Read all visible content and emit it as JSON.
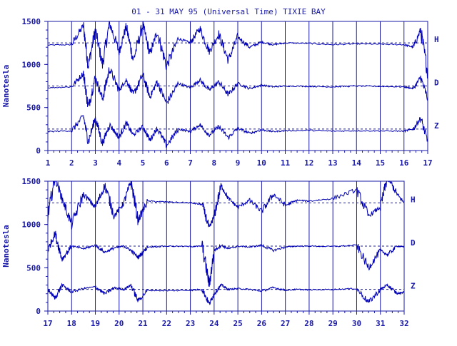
{
  "title": "01 - 31 MAY 95 (Universal Time) TIXIE BAY",
  "colors": {
    "ink": "#1a1aa6",
    "trace": "#0000b4",
    "background": "#ffffff"
  },
  "chart_data": [
    {
      "type": "line",
      "title": "01 - 31 MAY 95 (Universal Time) TIXIE BAY",
      "xlabel": "",
      "ylabel": "Nanotesla",
      "xlim": [
        1,
        17
      ],
      "ylim": [
        0,
        1500
      ],
      "x_ticks": [
        1,
        2,
        3,
        4,
        5,
        6,
        7,
        8,
        9,
        10,
        11,
        12,
        13,
        14,
        15,
        16,
        17
      ],
      "y_ticks": [
        0,
        500,
        1000,
        1500
      ],
      "grid": "vertical lines at each day",
      "baselines": [
        1250,
        750,
        250
      ],
      "series": [
        {
          "name": "H",
          "baseline": 1250,
          "x": [
            1,
            2,
            2.5,
            2.7,
            3,
            3.3,
            3.6,
            4,
            4.3,
            4.6,
            5,
            5.3,
            5.6,
            6,
            6.5,
            7,
            7.4,
            7.8,
            8.2,
            8.6,
            9,
            9.5,
            10,
            10.5,
            11,
            12,
            13,
            14,
            15,
            16,
            16.4,
            16.7,
            17
          ],
          "values": [
            1225,
            1230,
            1450,
            980,
            1400,
            1000,
            1480,
            1150,
            1440,
            1050,
            1460,
            1120,
            1380,
            980,
            1300,
            1250,
            1420,
            1150,
            1350,
            1050,
            1320,
            1200,
            1260,
            1230,
            1250,
            1245,
            1230,
            1240,
            1235,
            1230,
            1200,
            1400,
            900
          ]
        },
        {
          "name": "D",
          "baseline": 750,
          "x": [
            1,
            2,
            2.5,
            2.7,
            3,
            3.3,
            3.6,
            4,
            4.3,
            4.6,
            5,
            5.3,
            5.6,
            6,
            6.5,
            7,
            7.4,
            7.8,
            8.2,
            8.6,
            9,
            9.5,
            10,
            10.5,
            11,
            12,
            13,
            14,
            15,
            16,
            16.4,
            16.7,
            17
          ],
          "values": [
            730,
            740,
            900,
            500,
            850,
            600,
            950,
            700,
            820,
            650,
            880,
            620,
            800,
            550,
            780,
            730,
            820,
            700,
            800,
            650,
            780,
            720,
            760,
            740,
            750,
            745,
            740,
            750,
            745,
            740,
            720,
            850,
            600
          ]
        },
        {
          "name": "Z",
          "baseline": 250,
          "x": [
            1,
            2,
            2.5,
            2.7,
            3,
            3.3,
            3.6,
            4,
            4.3,
            4.6,
            5,
            5.3,
            5.6,
            6,
            6.5,
            7,
            7.4,
            7.8,
            8.2,
            8.6,
            9,
            9.5,
            10,
            10.5,
            11,
            12,
            13,
            14,
            15,
            16,
            16.4,
            16.7,
            17
          ],
          "values": [
            220,
            230,
            400,
            100,
            380,
            80,
            300,
            150,
            320,
            180,
            280,
            120,
            260,
            60,
            250,
            220,
            300,
            180,
            280,
            150,
            260,
            200,
            240,
            220,
            230,
            235,
            225,
            230,
            228,
            225,
            250,
            380,
            100
          ]
        }
      ]
    },
    {
      "type": "line",
      "title": "",
      "xlabel": "",
      "ylabel": "Nanotesla",
      "xlim": [
        17,
        32
      ],
      "ylim": [
        0,
        1500
      ],
      "x_ticks": [
        17,
        18,
        19,
        20,
        21,
        22,
        23,
        24,
        25,
        26,
        27,
        28,
        29,
        30,
        31,
        32
      ],
      "y_ticks": [
        0,
        500,
        1000,
        1500
      ],
      "grid": "vertical lines at each day",
      "baselines": [
        1250,
        750,
        250
      ],
      "series": [
        {
          "name": "H",
          "baseline": 1250,
          "x": [
            17,
            17.3,
            17.6,
            18,
            18.5,
            19,
            19.4,
            19.8,
            20.2,
            20.5,
            20.8,
            21.2,
            22,
            23,
            23.5,
            23.8,
            24,
            24.3,
            24.6,
            25,
            25.5,
            26,
            26.5,
            27,
            27.5,
            28,
            29,
            30,
            30.5,
            31,
            31.3,
            31.7,
            32
          ],
          "values": [
            1100,
            1550,
            1300,
            1000,
            1350,
            1200,
            1450,
            1100,
            1250,
            1500,
            1050,
            1270,
            1260,
            1250,
            1230,
            950,
            1100,
            1450,
            1300,
            1200,
            1280,
            1150,
            1350,
            1220,
            1280,
            1270,
            1300,
            1400,
            1100,
            1200,
            1550,
            1350,
            1250
          ]
        },
        {
          "name": "D",
          "baseline": 750,
          "x": [
            17,
            17.3,
            17.6,
            18,
            18.5,
            19,
            19.4,
            19.8,
            20.2,
            20.5,
            20.8,
            21.2,
            22,
            23,
            23.5,
            23.8,
            24,
            24.3,
            24.6,
            25,
            25.5,
            26,
            26.5,
            27,
            27.5,
            28,
            29,
            30,
            30.5,
            31,
            31.3,
            31.7,
            32
          ],
          "values": [
            700,
            900,
            600,
            750,
            720,
            760,
            680,
            730,
            750,
            700,
            620,
            740,
            750,
            745,
            750,
            300,
            700,
            760,
            720,
            750,
            740,
            760,
            700,
            740,
            750,
            750,
            745,
            760,
            500,
            700,
            650,
            750,
            740
          ]
        },
        {
          "name": "Z",
          "baseline": 250,
          "x": [
            17,
            17.3,
            17.6,
            18,
            18.5,
            19,
            19.4,
            19.8,
            20.2,
            20.5,
            20.8,
            21.2,
            22,
            23,
            23.5,
            23.8,
            24,
            24.3,
            24.6,
            25,
            25.5,
            26,
            26.5,
            27,
            27.5,
            28,
            29,
            30,
            30.5,
            31,
            31.3,
            31.7,
            32
          ],
          "values": [
            250,
            150,
            300,
            220,
            260,
            280,
            200,
            270,
            250,
            300,
            120,
            240,
            235,
            240,
            250,
            80,
            200,
            300,
            250,
            260,
            250,
            230,
            270,
            240,
            250,
            245,
            250,
            260,
            100,
            250,
            300,
            200,
            220
          ]
        }
      ]
    }
  ]
}
